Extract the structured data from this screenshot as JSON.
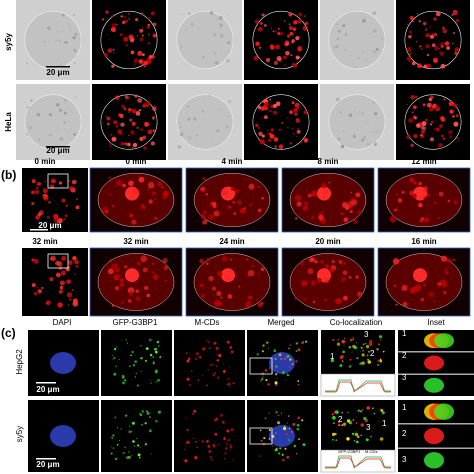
{
  "panel_a": {
    "rows": [
      "sy5y",
      "HeLa"
    ],
    "scale_bars": [
      "20 μm",
      "20 μm"
    ]
  },
  "panel_b": {
    "label": "(b)",
    "row1_times": [
      "0 min",
      "0 min",
      "4 min",
      "8 min",
      "12 min"
    ],
    "row2_times": [
      "32 min",
      "32 min",
      "24 min",
      "20 min",
      "16 min"
    ],
    "scale_bar": "20 μm"
  },
  "panel_c": {
    "label": "(c)",
    "columns": [
      "DAPI",
      "GFP-G3BP1",
      "M-CDs",
      "Merged",
      "Co-localization",
      "Inset"
    ],
    "rows": [
      "HepG2",
      "sy5y"
    ],
    "scale_bars": [
      "20 μm",
      "20 μm"
    ],
    "roi_labels_row1": [
      "1",
      "2",
      "3"
    ],
    "roi_labels_row2": [
      "2",
      "3",
      "1"
    ],
    "plot_legend": [
      "GFP-G3BP1",
      "M-CDs"
    ],
    "inset_numbers_row1": [
      "1",
      "2",
      "3"
    ],
    "inset_numbers_row2": [
      "1",
      "2",
      "3"
    ]
  }
}
